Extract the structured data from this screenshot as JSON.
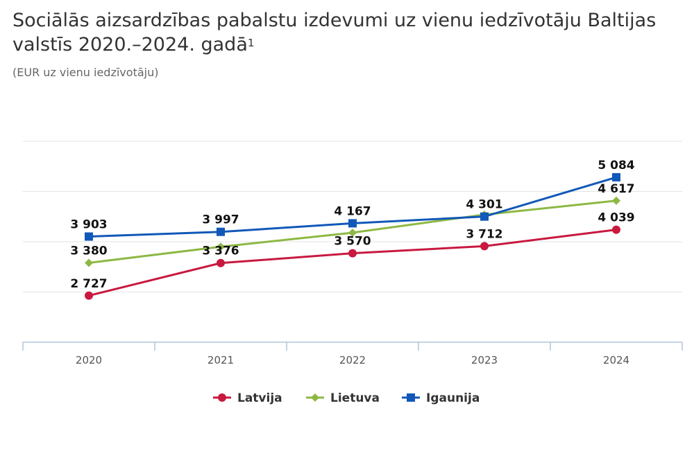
{
  "title": "Sociālās aizsardzības pabalstu izdevumi uz vienu iedzīvotāju Baltijas valstīs 2020.–2024. gadā",
  "title_footnote": "1",
  "subtitle": "(EUR uz vienu iedzīvotāju)",
  "chart_data": {
    "type": "line",
    "title": "Sociālās aizsardzības pabalstu izdevumi uz vienu iedzīvotāju Baltijas valstīs 2020.–2024. gadā",
    "ylabel": "EUR uz vienu iedzīvotāju",
    "xlabel": "",
    "categories": [
      "2020",
      "2021",
      "2022",
      "2023",
      "2024"
    ],
    "ylim": [
      1800,
      5800
    ],
    "gridlines": [
      2800,
      3800,
      4800,
      5800
    ],
    "grid": true,
    "legend": "bottom-center",
    "series": [
      {
        "name": "Latvija",
        "color": "#C8193F",
        "marker": "circle",
        "values": [
          2727,
          3376,
          3570,
          3712,
          4039
        ],
        "labels": [
          "2 727",
          "3 376",
          "3 570",
          "3 712",
          "4 039"
        ]
      },
      {
        "name": "Lietuva",
        "color": "#8DB844",
        "marker": "diamond",
        "values": [
          3380,
          3700,
          3980,
          4340,
          4617
        ],
        "labels": [
          "3 380",
          "",
          "",
          "",
          "4 617"
        ]
      },
      {
        "name": "Igaunija",
        "color": "#1158B8",
        "marker": "square",
        "values": [
          3903,
          3997,
          4167,
          4301,
          5084
        ],
        "labels": [
          "3 903",
          "3 997",
          "4 167",
          "4 301",
          "5 084"
        ]
      }
    ]
  }
}
